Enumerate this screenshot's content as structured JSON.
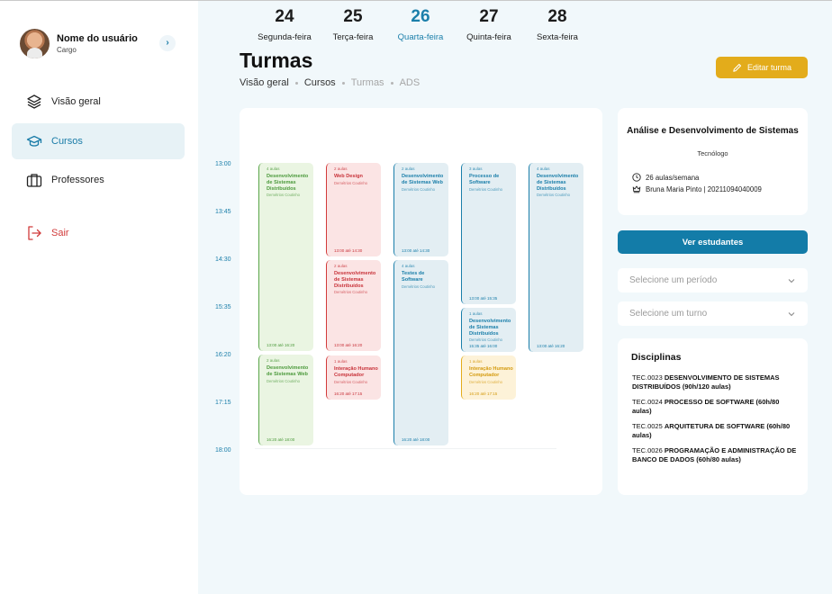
{
  "profile": {
    "name": "Nome do usuário",
    "role": "Cargo",
    "toggle_icon": "chevron-right-icon"
  },
  "sidebar": {
    "items": [
      {
        "label": "Visão geral",
        "icon": "layers-icon"
      },
      {
        "label": "Cursos",
        "icon": "graduation-cap-icon",
        "active": true
      },
      {
        "label": "Professores",
        "icon": "briefcase-icon"
      }
    ],
    "logout": {
      "label": "Sair",
      "icon": "logout-icon"
    }
  },
  "header": {
    "title": "Turmas",
    "breadcrumb": [
      "Visão geral",
      "Cursos",
      "Turmas",
      "ADS"
    ],
    "edit_label": "Editar turma"
  },
  "calendar": {
    "days": [
      {
        "num": "24",
        "name": "Segunda-feira"
      },
      {
        "num": "25",
        "name": "Terça-feira"
      },
      {
        "num": "26",
        "name": "Quarta-feira",
        "today": true
      },
      {
        "num": "27",
        "name": "Quinta-feira"
      },
      {
        "num": "28",
        "name": "Sexta-feira"
      }
    ],
    "times": [
      "13:00",
      "13:45",
      "14:30",
      "15:35",
      "16:20",
      "17:15",
      "18:00"
    ],
    "events": [
      {
        "count": "4 aulas",
        "title": "Desenvolvimento de Sistemas Distribuídos",
        "prof": "Demétrios Coutinho",
        "time": "13:00 até 16:20"
      },
      {
        "count": "2 aulas",
        "title": "Desenvolvimento de Sistemas Web",
        "prof": "Demétrios Coutinho",
        "time": "16:20 até 18:00"
      },
      {
        "count": "2 aulas",
        "title": "Web Design",
        "prof": "Demétrios Coutinho",
        "time": "13:00 até 14:30"
      },
      {
        "count": "2 aulas",
        "title": "Desenvolvimento de Sistemas Distribuídos",
        "prof": "Demétrios Coutinho",
        "time": "13:00 até 16:20"
      },
      {
        "count": "1 aulas",
        "title": "Interação Humano Computador",
        "prof": "Demétrios Coutinho",
        "time": "16:20 até 17:15"
      },
      {
        "count": "2 aulas",
        "title": "Desenvolvimento de Sistemas Web",
        "prof": "Demétrios Coutinho",
        "time": "13:00 até 14:30"
      },
      {
        "count": "4 aulas",
        "title": "Testes de Software",
        "prof": "Demétrios Coutinho",
        "time": "16:20 até 18:00"
      },
      {
        "count": "3 aulas",
        "title": "Processo de Software",
        "prof": "Demétrios Coutinho",
        "time": "13:00 até 15:35"
      },
      {
        "count": "1 aulas",
        "title": "Desenvolvimento de Sistemas Distribuídos",
        "prof": "Demétrios Coutinho",
        "time": "15:35 até 16:00"
      },
      {
        "count": "1 aulas",
        "title": "Interação Humano Computador",
        "prof": "Demétrios Coutinho",
        "time": "16:20 até 17:15"
      },
      {
        "count": "4 aulas",
        "title": "Desenvolvimento de Sistemas Distribuídos",
        "prof": "Demétrios Coutinho",
        "time": "13:00 até 16:20"
      }
    ]
  },
  "course": {
    "title": "Análise e Desenvolvimento de Sistemas",
    "type": "Tecnólogo",
    "hours": "26 aulas/semana",
    "coordinator": "Bruna Maria Pinto | 20211094040009"
  },
  "actions": {
    "students_label": "Ver estudantes",
    "period_placeholder": "Selecione um período",
    "shift_placeholder": "Selecione um turno"
  },
  "disciplines": {
    "title": "Disciplinas",
    "items": [
      {
        "code": "TEC.0023",
        "name": "DESENVOLVIMENTO DE SISTEMAS DISTRIBUÍDOS (90h/120 aulas)"
      },
      {
        "code": "TEC.0024",
        "name": "PROCESSO DE SOFTWARE (60h/80 aulas)"
      },
      {
        "code": "TEC.0025",
        "name": "ARQUITETURA DE SOFTWARE (60h/80 aulas)"
      },
      {
        "code": "TEC.0026",
        "name": "PROGRAMAÇÃO E ADMINISTRAÇÃO DE BANCO DE DADOS (60h/80 aulas)"
      }
    ]
  },
  "colors": {
    "accent": "#137ca8",
    "edit": "#e3ac1b",
    "logout": "#d13a3a",
    "background": "#f1f8fb"
  }
}
